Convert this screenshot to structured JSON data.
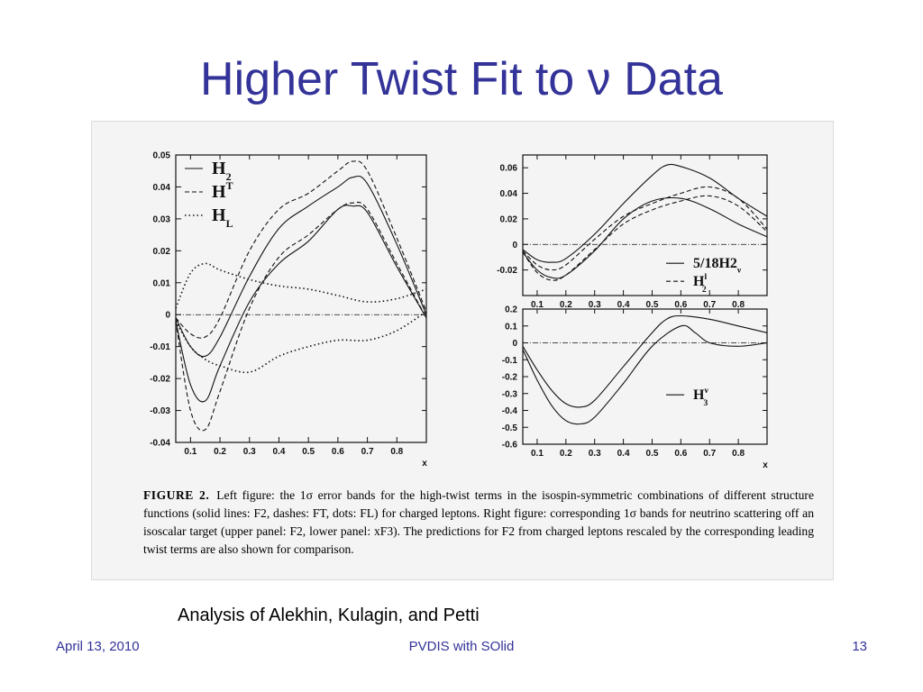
{
  "slide": {
    "title": "Higher Twist Fit to ν Data",
    "analysis": "Analysis of Alekhin, Kulagin, and Petti",
    "footer": {
      "date": "April 13, 2010",
      "center": "PVDIS with SOlid",
      "page": "13"
    }
  },
  "figure": {
    "caption_label": "FIGURE 2.",
    "caption_text": "Left figure: the 1σ error bands for the high-twist terms in the isospin-symmetric combinations of different structure functions (solid lines: F2, dashes: FT, dots: FL) for charged leptons. Right figure: corresponding 1σ bands for neutrino scattering off an isoscalar target (upper panel: F2, lower panel: xF3). The predictions for F2 from charged leptons rescaled by the corresponding leading twist terms are also shown for comparison.",
    "colors": {
      "title": "#333399",
      "footer": "#333399",
      "figure_bg": "#f4f4f4"
    }
  },
  "chart_data": [
    {
      "type": "line",
      "panel": "left",
      "xlabel": "x",
      "xlim": [
        0.05,
        0.9
      ],
      "ylim": [
        -0.04,
        0.05
      ],
      "xticks": [
        "0.1",
        "0.2",
        "0.3",
        "0.4",
        "0.5",
        "0.6",
        "0.7",
        "0.8"
      ],
      "yticks": [
        "0.05",
        "0.04",
        "0.03",
        "0.02",
        "0.01",
        "0",
        "-0.01",
        "-0.02",
        "-0.03",
        "-0.04"
      ],
      "legend": [
        "H2",
        "HT",
        "HL"
      ],
      "series": [
        {
          "name": "H2",
          "style": "solid",
          "x": [
            0.05,
            0.1,
            0.15,
            0.2,
            0.3,
            0.4,
            0.5,
            0.6,
            0.65,
            0.7,
            0.8,
            0.9
          ],
          "y": [
            -0.002,
            -0.022,
            -0.027,
            -0.016,
            0.004,
            0.016,
            0.023,
            0.033,
            0.034,
            0.032,
            0.015,
            -0.001
          ]
        },
        {
          "name": "H2",
          "style": "solid",
          "x": [
            0.05,
            0.1,
            0.15,
            0.2,
            0.3,
            0.4,
            0.5,
            0.6,
            0.65,
            0.7,
            0.8,
            0.9
          ],
          "y": [
            -0.001,
            -0.01,
            -0.013,
            -0.007,
            0.012,
            0.027,
            0.034,
            0.04,
            0.043,
            0.041,
            0.022,
            0.0
          ]
        },
        {
          "name": "HT",
          "style": "dash",
          "x": [
            0.05,
            0.1,
            0.15,
            0.2,
            0.3,
            0.4,
            0.5,
            0.6,
            0.65,
            0.7,
            0.8,
            0.9
          ],
          "y": [
            -0.002,
            -0.03,
            -0.036,
            -0.024,
            0.002,
            0.018,
            0.025,
            0.033,
            0.035,
            0.033,
            0.016,
            -0.001
          ]
        },
        {
          "name": "HT",
          "style": "dash",
          "x": [
            0.05,
            0.1,
            0.15,
            0.2,
            0.3,
            0.4,
            0.5,
            0.6,
            0.65,
            0.7,
            0.8,
            0.9
          ],
          "y": [
            -0.001,
            -0.006,
            -0.007,
            -0.001,
            0.02,
            0.033,
            0.038,
            0.045,
            0.048,
            0.045,
            0.024,
            0.001
          ]
        },
        {
          "name": "HL",
          "style": "dot",
          "x": [
            0.05,
            0.1,
            0.15,
            0.2,
            0.3,
            0.4,
            0.5,
            0.6,
            0.7,
            0.8,
            0.9
          ],
          "y": [
            0.002,
            0.013,
            0.016,
            0.014,
            0.011,
            0.009,
            0.008,
            0.006,
            0.004,
            0.005,
            0.008
          ]
        },
        {
          "name": "HL",
          "style": "dot",
          "x": [
            0.05,
            0.1,
            0.15,
            0.2,
            0.3,
            0.4,
            0.5,
            0.6,
            0.7,
            0.8,
            0.9
          ],
          "y": [
            -0.002,
            -0.01,
            -0.014,
            -0.016,
            -0.018,
            -0.013,
            -0.01,
            -0.008,
            -0.008,
            -0.005,
            0.001
          ]
        }
      ]
    },
    {
      "type": "line",
      "panel": "right-upper",
      "xlim": [
        0.05,
        0.9
      ],
      "ylim": [
        -0.04,
        0.07
      ],
      "xticks": [
        "0.1",
        "0.2",
        "0.3",
        "0.4",
        "0.5",
        "0.6",
        "0.7",
        "0.8"
      ],
      "yticks": [
        "0.06",
        "0.04",
        "0.02",
        "0",
        "-0.02"
      ],
      "legend": [
        "5/18H2ν",
        "H2l"
      ],
      "series": [
        {
          "name": "5/18H2ν",
          "style": "solid",
          "x": [
            0.05,
            0.1,
            0.15,
            0.2,
            0.3,
            0.4,
            0.5,
            0.55,
            0.6,
            0.7,
            0.8,
            0.9
          ],
          "y": [
            -0.004,
            -0.012,
            -0.014,
            -0.011,
            0.008,
            0.032,
            0.054,
            0.062,
            0.061,
            0.052,
            0.036,
            0.022
          ]
        },
        {
          "name": "5/18H2ν",
          "style": "solid",
          "x": [
            0.05,
            0.1,
            0.15,
            0.2,
            0.3,
            0.4,
            0.5,
            0.6,
            0.7,
            0.8,
            0.9
          ],
          "y": [
            -0.006,
            -0.02,
            -0.026,
            -0.024,
            -0.005,
            0.02,
            0.034,
            0.036,
            0.028,
            0.016,
            0.006
          ]
        },
        {
          "name": "H2l",
          "style": "dash",
          "x": [
            0.05,
            0.1,
            0.15,
            0.2,
            0.3,
            0.4,
            0.5,
            0.6,
            0.7,
            0.8,
            0.9
          ],
          "y": [
            -0.006,
            -0.022,
            -0.028,
            -0.024,
            -0.004,
            0.016,
            0.027,
            0.034,
            0.038,
            0.03,
            0.01
          ]
        },
        {
          "name": "H2l",
          "style": "dash",
          "x": [
            0.05,
            0.1,
            0.15,
            0.2,
            0.3,
            0.4,
            0.5,
            0.6,
            0.7,
            0.8,
            0.9
          ],
          "y": [
            -0.005,
            -0.016,
            -0.02,
            -0.016,
            0.004,
            0.022,
            0.032,
            0.04,
            0.045,
            0.036,
            0.012
          ]
        }
      ]
    },
    {
      "type": "line",
      "panel": "right-lower",
      "xlabel": "x",
      "xlim": [
        0.05,
        0.9
      ],
      "ylim": [
        -0.6,
        0.2
      ],
      "xticks": [
        "0.1",
        "0.2",
        "0.3",
        "0.4",
        "0.5",
        "0.6",
        "0.7",
        "0.8"
      ],
      "yticks": [
        "0.2",
        "0.1",
        "0",
        "-0.1",
        "-0.2",
        "-0.3",
        "-0.4",
        "-0.5",
        "-0.6"
      ],
      "legend": [
        "H3ν"
      ],
      "series": [
        {
          "name": "H3ν",
          "style": "solid",
          "x": [
            0.05,
            0.1,
            0.15,
            0.2,
            0.25,
            0.3,
            0.4,
            0.5,
            0.55,
            0.6,
            0.7,
            0.8,
            0.9
          ],
          "y": [
            -0.02,
            -0.16,
            -0.28,
            -0.36,
            -0.38,
            -0.34,
            -0.14,
            0.06,
            0.14,
            0.16,
            0.14,
            0.1,
            0.06
          ]
        },
        {
          "name": "H3ν",
          "style": "solid",
          "x": [
            0.05,
            0.1,
            0.15,
            0.2,
            0.25,
            0.3,
            0.4,
            0.5,
            0.6,
            0.65,
            0.7,
            0.8,
            0.9
          ],
          "y": [
            -0.04,
            -0.22,
            -0.37,
            -0.46,
            -0.48,
            -0.44,
            -0.24,
            -0.02,
            0.1,
            0.06,
            0.0,
            -0.02,
            0.0
          ]
        }
      ]
    }
  ]
}
